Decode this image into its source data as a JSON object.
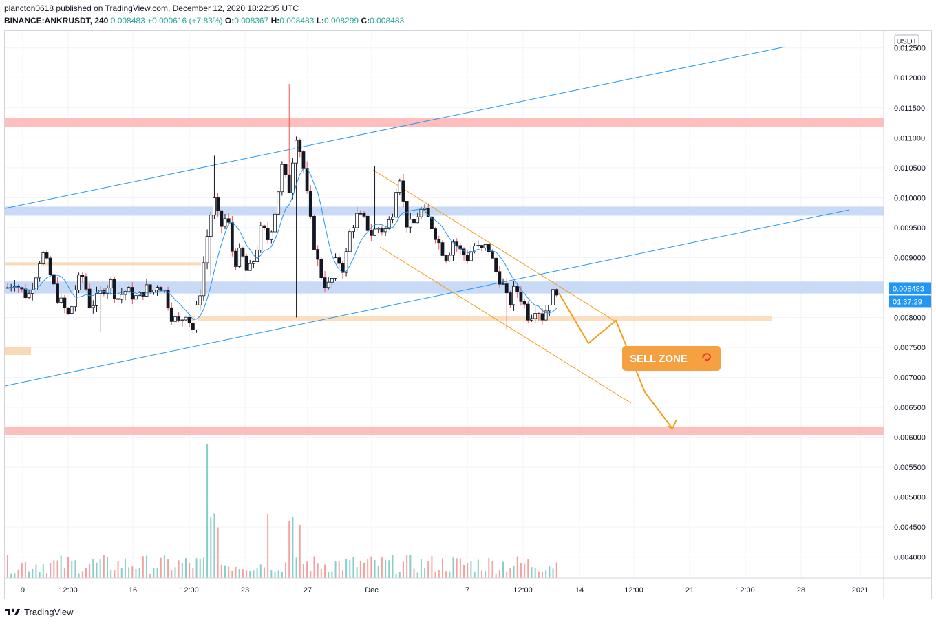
{
  "header": {
    "publisher": "plancton0618 published on TradingView.com, December 12, 2020 18:22:35 UTC",
    "symbol": "BINANCE:ANKRUSDT, 240",
    "last": "0.008483",
    "change": "+0.000616 (+7.83%)",
    "o_label": "O:",
    "o_value": "0.008367",
    "h_label": "H:",
    "h_value": "0.008483",
    "l_label": "L:",
    "l_value": "0.008299",
    "c_label": "C:",
    "c_value": "0.008483"
  },
  "footer": {
    "brand": "TradingView"
  },
  "colors": {
    "up": "#26a69a",
    "down": "#ef5350",
    "candle_up_fill": "#ffffff",
    "candle_down_fill": "#131722",
    "ma": "#2196f3",
    "channel_blue": "#2196f3",
    "channel_orange": "#f59c1a",
    "zone_red": "#ffb3b3",
    "zone_blue": "#bed4f5",
    "zone_orange": "#fad9b5",
    "label_bg": "#f5a142",
    "price_tag": "#2196f3"
  },
  "chart_data": {
    "type": "candlestick",
    "currency_label": "USDT",
    "y_ticks": [
      "0.012500",
      "0.012000",
      "0.011500",
      "0.011000",
      "0.010500",
      "0.010000",
      "0.009500",
      "0.009000",
      "0.008500",
      "0.008000",
      "0.007500",
      "0.007000",
      "0.006500",
      "0.006000",
      "0.005500",
      "0.005000",
      "0.004500",
      "0.004000"
    ],
    "x_ticks": [
      "9",
      "12:00",
      "16",
      "12:00",
      "23",
      "27",
      "Dec",
      "7",
      "12:00",
      "14",
      "12:00",
      "21",
      "12:00",
      "28",
      "2021"
    ],
    "last_price_tag": "0.008483",
    "countdown_tag": "01:37:29",
    "annotation": "SELL ZONE",
    "annotation_icon": "shrimp-icon",
    "zones": [
      {
        "type": "resistance",
        "color": "red",
        "from": 0.01118,
        "to": 0.01133
      },
      {
        "type": "resistance",
        "color": "blue",
        "from": 0.0097,
        "to": 0.00985
      },
      {
        "type": "support",
        "color": "blue",
        "from": 0.0084,
        "to": 0.0086
      },
      {
        "type": "support",
        "color": "orange",
        "from": 0.00794,
        "to": 0.00802
      },
      {
        "type": "support",
        "color": "red",
        "from": 0.00603,
        "to": 0.00618
      }
    ],
    "close_path": [
      0.0085,
      0.00862,
      0.00845,
      0.00835,
      0.00868,
      0.0091,
      0.0088,
      0.0084,
      0.0082,
      0.008,
      0.00855,
      0.0087,
      0.0082,
      0.0083,
      0.0085,
      0.0086,
      0.0083,
      0.00845,
      0.0084,
      0.0083,
      0.0085,
      0.0084,
      0.0086,
      0.0084,
      0.008,
      0.0079,
      0.0081,
      0.0078,
      0.0084,
      0.0093,
      0.01,
      0.0095,
      0.0097,
      0.0089,
      0.0091,
      0.0087,
      0.009,
      0.0095,
      0.0093,
      0.0098,
      0.0105,
      0.0101,
      0.0111,
      0.0106,
      0.0097,
      0.009,
      0.0086,
      0.0085,
      0.009,
      0.0088,
      0.0095,
      0.0097,
      0.0096,
      0.0094,
      0.0095,
      0.00945,
      0.0097,
      0.0105,
      0.0096,
      0.0095,
      0.0098,
      0.0097,
      0.0095,
      0.0092,
      0.009,
      0.0093,
      0.0091,
      0.009,
      0.0092,
      0.0091,
      0.0092,
      0.0088,
      0.0086,
      0.0082,
      0.0085,
      0.0083,
      0.008,
      0.0082,
      0.008,
      0.0083,
      0.00848
    ]
  }
}
